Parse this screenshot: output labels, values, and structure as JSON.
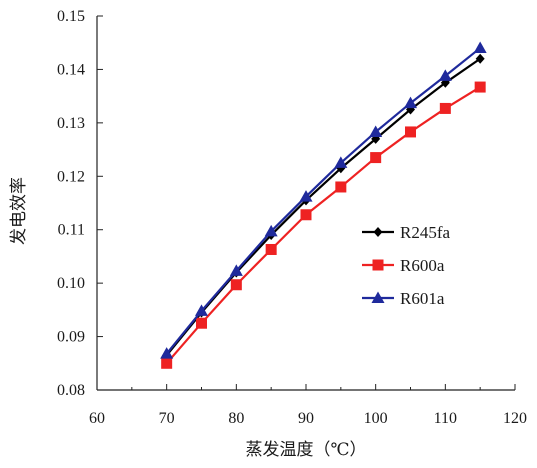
{
  "chart_data": {
    "type": "line",
    "title": "",
    "xlabel": "蒸发温度（℃）",
    "ylabel": "发电效率",
    "xlim": [
      60,
      120
    ],
    "ylim": [
      0.08,
      0.15
    ],
    "x_ticks": [
      "60",
      "70",
      "80",
      "90",
      "100",
      "110",
      "120"
    ],
    "y_ticks": [
      "0.08",
      "0.09",
      "0.10",
      "0.11",
      "0.12",
      "0.13",
      "0.14",
      "0.15"
    ],
    "grid": false,
    "legend_position": "right-center",
    "x": [
      70,
      75,
      80,
      85,
      90,
      95,
      100,
      105,
      110,
      115
    ],
    "series": [
      {
        "name": "R245fa",
        "color": "#000000",
        "marker": "diamond",
        "values": [
          0.0865,
          0.0945,
          0.102,
          0.109,
          0.1155,
          0.1215,
          0.127,
          0.1325,
          0.1375,
          0.142
        ]
      },
      {
        "name": "R600a",
        "color": "#ee2222",
        "marker": "square",
        "values": [
          0.085,
          0.0925,
          0.0997,
          0.1063,
          0.1128,
          0.118,
          0.1235,
          0.1283,
          0.1327,
          0.1367
        ]
      },
      {
        "name": "R601a",
        "color": "#1f2a9c",
        "marker": "triangle",
        "values": [
          0.0868,
          0.0948,
          0.1023,
          0.1097,
          0.1162,
          0.1225,
          0.1283,
          0.1337,
          0.1388,
          0.144
        ]
      }
    ]
  }
}
